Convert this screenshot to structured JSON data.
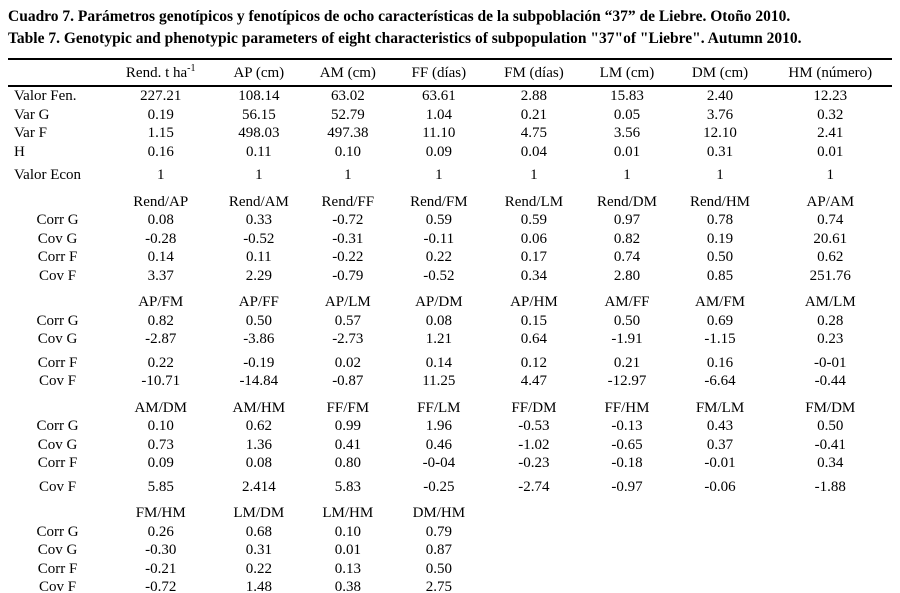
{
  "title": {
    "line_es": "Cuadro 7. Parámetros genotípicos y fenotípicos de ocho características de la subpoblación “37” de Liebre. Otoño 2010.",
    "line_en": "Table 7. Genotypic and phenotypic parameters of eight characteristics of subpopulation \"37\"of \"Liebre\". Autumn 2010."
  },
  "table": {
    "column_headers": [
      {
        "text": ""
      },
      {
        "text": "Rend. t ha",
        "sup": "-1"
      },
      {
        "text": "AP (cm)"
      },
      {
        "text": "AM (cm)"
      },
      {
        "text": "FF (días)"
      },
      {
        "text": "FM (días)"
      },
      {
        "text": "LM (cm)"
      },
      {
        "text": "DM (cm)"
      },
      {
        "text": "HM (número)"
      }
    ],
    "row_label_names": [
      "Valor Fen.",
      "Var G",
      "Var F",
      "H",
      "Valor Econ",
      "Corr G",
      "Cov G",
      "Corr F",
      "Cov F"
    ],
    "blocks": [
      {
        "rows": [
          {
            "label": "Valor Fen.",
            "label_align": "left",
            "values": [
              "227.21",
              "108.14",
              "63.02",
              "63.61",
              "2.88",
              "15.83",
              "2.40",
              "12.23"
            ]
          },
          {
            "label": "Var G",
            "label_align": "left",
            "values": [
              "0.19",
              "56.15",
              "52.79",
              "1.04",
              "0.21",
              "0.05",
              "3.76",
              "0.32"
            ]
          },
          {
            "label": "Var F",
            "label_align": "left",
            "values": [
              "1.15",
              "498.03",
              "497.38",
              "11.10",
              "4.75",
              "3.56",
              "12.10",
              "2.41"
            ]
          },
          {
            "label": "H",
            "label_align": "left",
            "values": [
              "0.16",
              "0.11",
              "0.10",
              "0.09",
              "0.04",
              "0.01",
              "0.31",
              "0.01"
            ]
          },
          {
            "label": "Valor Econ",
            "label_align": "left",
            "gap_before": true,
            "values": [
              "1",
              "1",
              "1",
              "1",
              "1",
              "1",
              "1",
              "1"
            ]
          }
        ]
      },
      {
        "pair_headers": [
          "Rend/AP",
          "Rend/AM",
          "Rend/FF",
          "Rend/FM",
          "Rend/LM",
          "Rend/DM",
          "Rend/HM",
          "AP/AM"
        ],
        "rows": [
          {
            "label": "Corr G",
            "values": [
              "0.08",
              "0.33",
              "-0.72",
              "0.59",
              "0.59",
              "0.97",
              "0.78",
              "0.74"
            ]
          },
          {
            "label": "Cov G",
            "values": [
              "-0.28",
              "-0.52",
              "-0.31",
              "-0.11",
              "0.06",
              "0.82",
              "0.19",
              "20.61"
            ]
          },
          {
            "label": "Corr F",
            "values": [
              "0.14",
              "0.11",
              "-0.22",
              "0.22",
              "0.17",
              "0.74",
              "0.50",
              "0.62"
            ]
          },
          {
            "label": "Cov F",
            "values": [
              "3.37",
              "2.29",
              "-0.79",
              "-0.52",
              "0.34",
              "2.80",
              "0.85",
              "251.76"
            ]
          }
        ]
      },
      {
        "pair_headers": [
          "AP/FM",
          "AP/FF",
          "AP/LM",
          "AP/DM",
          "AP/HM",
          "AM/FF",
          "AM/FM",
          "AM/LM"
        ],
        "rows": [
          {
            "label": "Corr G",
            "values": [
              "0.82",
              "0.50",
              "0.57",
              "0.08",
              "0.15",
              "0.50",
              "0.69",
              "0.28"
            ]
          },
          {
            "label": "Cov G",
            "values": [
              "-2.87",
              "-3.86",
              "-2.73",
              "1.21",
              "0.64",
              "-1.91",
              "-1.15",
              "0.23"
            ]
          },
          {
            "label": "Corr F",
            "gap_before": true,
            "values": [
              "0.22",
              "-0.19",
              "0.02",
              "0.14",
              "0.12",
              "0.21",
              "0.16",
              "-0-01"
            ]
          },
          {
            "label": "Cov F",
            "values": [
              "-10.71",
              "-14.84",
              "-0.87",
              "11.25",
              "4.47",
              "-12.97",
              "-6.64",
              "-0.44"
            ]
          }
        ]
      },
      {
        "pair_headers": [
          "AM/DM",
          "AM/HM",
          "FF/FM",
          "FF/LM",
          "FF/DM",
          "FF/HM",
          "FM/LM",
          "FM/DM"
        ],
        "rows": [
          {
            "label": "Corr G",
            "values": [
              "0.10",
              "0.62",
              "0.99",
              "1.96",
              "-0.53",
              "-0.13",
              "0.43",
              "0.50"
            ]
          },
          {
            "label": "Cov G",
            "values": [
              "0.73",
              "1.36",
              "0.41",
              "0.46",
              "-1.02",
              "-0.65",
              "0.37",
              "-0.41"
            ]
          },
          {
            "label": "Corr F",
            "values": [
              "0.09",
              "0.08",
              "0.80",
              "-0-04",
              "-0.23",
              "-0.18",
              "-0.01",
              "0.34"
            ]
          },
          {
            "label": "Cov F",
            "gap_before": true,
            "values": [
              "5.85",
              "2.414",
              "5.83",
              "-0.25",
              "-2.74",
              "-0.97",
              "-0.06",
              "-1.88"
            ]
          }
        ]
      },
      {
        "pair_headers": [
          "FM/HM",
          "LM/DM",
          "LM/HM",
          "DM/HM",
          "",
          "",
          "",
          ""
        ],
        "rows": [
          {
            "label": "Corr G",
            "values": [
              "0.26",
              "0.68",
              "0.10",
              "0.79",
              "",
              "",
              "",
              ""
            ]
          },
          {
            "label": "Cov G",
            "values": [
              "-0.30",
              "0.31",
              "0.01",
              "0.87",
              "",
              "",
              "",
              ""
            ]
          },
          {
            "label": "Corr F",
            "values": [
              "-0.21",
              "0.22",
              "0.13",
              "0.50",
              "",
              "",
              "",
              ""
            ]
          },
          {
            "label": "Cov F",
            "values": [
              "-0.72",
              "1.48",
              "0.38",
              "2.75",
              "",
              "",
              "",
              ""
            ]
          }
        ]
      }
    ]
  }
}
